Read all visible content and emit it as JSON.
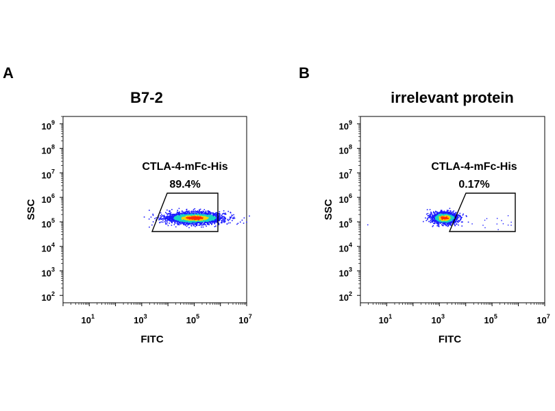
{
  "chart_data": [
    {
      "type": "scatter",
      "panel_label": "A",
      "title": "B7-2",
      "xlabel": "FITC",
      "ylabel": "SSC",
      "x_scale": "log",
      "y_scale": "log",
      "xlim": [
        1,
        10000000
      ],
      "ylim": [
        50,
        2000000000
      ],
      "x_ticks": [
        "10^1",
        "10^3",
        "10^5",
        "10^7"
      ],
      "y_ticks": [
        "10^2",
        "10^3",
        "10^4",
        "10^5",
        "10^6",
        "10^7",
        "10^8",
        "10^9"
      ],
      "gate": {
        "name": "CTLA-4-mFc-His",
        "percent": "89.4%"
      },
      "population": {
        "center_x": 100000,
        "center_y": 150000,
        "spread_x_log": 0.55,
        "spread_y_log": 0.12
      },
      "grid": false
    },
    {
      "type": "scatter",
      "panel_label": "B",
      "title": "irrelevant protein",
      "xlabel": "FITC",
      "ylabel": "SSC",
      "x_scale": "log",
      "y_scale": "log",
      "xlim": [
        1,
        10000000
      ],
      "ylim": [
        50,
        2000000000
      ],
      "x_ticks": [
        "10^1",
        "10^3",
        "10^5",
        "10^7"
      ],
      "y_ticks": [
        "10^2",
        "10^3",
        "10^4",
        "10^5",
        "10^6",
        "10^7",
        "10^8",
        "10^9"
      ],
      "gate": {
        "name": "CTLA-4-mFc-His",
        "percent": "0.17%"
      },
      "population": {
        "center_x": 1500,
        "center_y": 150000,
        "spread_x_log": 0.25,
        "spread_y_log": 0.12
      },
      "grid": false
    }
  ],
  "colors": {
    "density_low": "#1a1aff",
    "density_mid": "#19d3c5",
    "density_high": "#ffd400",
    "density_peak": "#ff2a00",
    "axis": "#000000"
  }
}
